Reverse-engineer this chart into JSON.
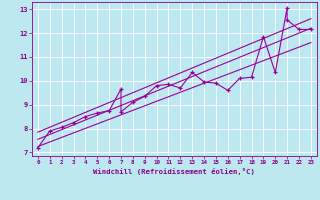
{
  "xlabel": "Windchill (Refroidissement éolien,°C)",
  "xlim": [
    0,
    23
  ],
  "ylim": [
    7,
    13
  ],
  "xticks": [
    0,
    1,
    2,
    3,
    4,
    5,
    6,
    7,
    8,
    9,
    10,
    11,
    12,
    13,
    14,
    15,
    16,
    17,
    18,
    19,
    20,
    21,
    22,
    23
  ],
  "yticks": [
    7,
    8,
    9,
    10,
    11,
    12,
    13
  ],
  "bg_color": "#bde8f0",
  "line_color": "#990099",
  "tick_color": "#880088",
  "scatter_x": [
    0,
    1,
    2,
    3,
    4,
    5,
    6,
    7,
    7,
    8,
    9,
    10,
    11,
    12,
    13,
    14,
    15,
    16,
    17,
    18,
    19,
    20,
    21,
    21,
    22,
    23
  ],
  "scatter_y": [
    7.2,
    7.9,
    8.05,
    8.25,
    8.5,
    8.65,
    8.75,
    9.65,
    8.7,
    9.1,
    9.35,
    9.8,
    9.85,
    9.7,
    10.35,
    9.95,
    9.9,
    9.6,
    10.1,
    10.15,
    11.85,
    10.35,
    13.05,
    12.55,
    12.15,
    12.15
  ],
  "trend1_x": [
    0,
    23
  ],
  "trend1_y": [
    7.55,
    12.2
  ],
  "trend2_x": [
    0,
    23
  ],
  "trend2_y": [
    7.25,
    11.6
  ],
  "trend3_x": [
    0,
    23
  ],
  "trend3_y": [
    7.85,
    12.6
  ]
}
